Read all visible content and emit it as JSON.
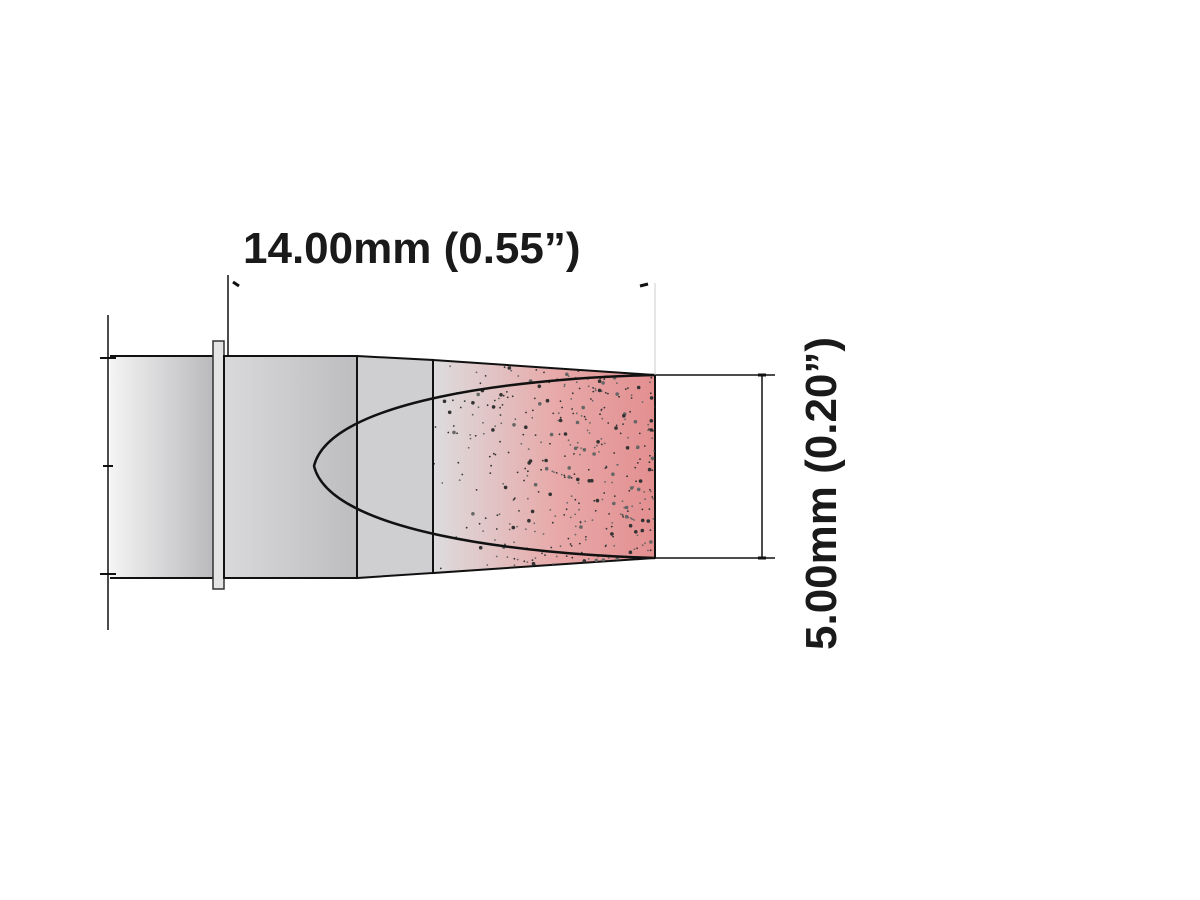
{
  "dimensions": {
    "length_label": "14.00mm (0.55”)",
    "width_label": "5.00mm (0.20”)"
  },
  "colors": {
    "tip_red": "#e8999a",
    "shaft_gray": "#c4c4c8",
    "outline": "#111111"
  }
}
